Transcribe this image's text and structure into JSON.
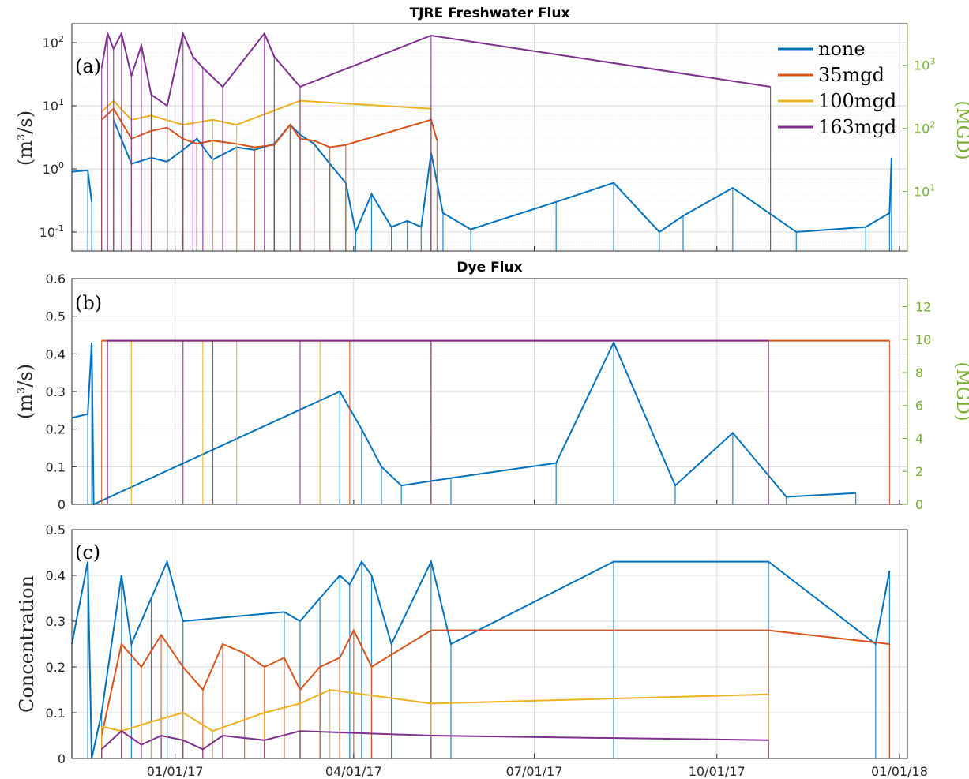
{
  "colors": {
    "none": "#0072bd",
    "35mgd": "#d95319",
    "100mgd": "#edb120",
    "163mgd": "#7e2f8e",
    "right_axis": "#77ac30",
    "grid": "#d9d9d9"
  },
  "chart_data": [
    {
      "panel": "a",
      "type": "line",
      "title": "TJRE Freshwater Flux",
      "panel_label": "(a)",
      "ylabel": "(m³/s)",
      "ylabel_base": "(m",
      "ylabel_sup": "3",
      "ylabel_tail": "/s)",
      "ylabel_right": "(MGD)",
      "yscale": "log",
      "ylim": [
        0.05,
        200
      ],
      "yticks": [
        {
          "base": "10",
          "exp": "-1"
        },
        {
          "base": "10",
          "exp": "0"
        },
        {
          "base": "10",
          "exp": "1"
        },
        {
          "base": "10",
          "exp": "2"
        }
      ],
      "ytick_values": [
        0.1,
        1,
        10,
        100
      ],
      "yticks_right": [
        {
          "base": "10",
          "exp": "1"
        },
        {
          "base": "10",
          "exp": "2"
        },
        {
          "base": "10",
          "exp": "3"
        }
      ],
      "yticks_right_values_mgd": [
        10,
        100,
        1000
      ],
      "grid": true,
      "legend": {
        "position": "top-right",
        "entries": [
          "none",
          "35mgd",
          "100mgd",
          "163mgd"
        ]
      },
      "series": [
        {
          "name": "none",
          "color_key": "none",
          "x": [
            "2016-11-10",
            "2016-11-18",
            "2016-11-20",
            "2016-11-25",
            "2016-12-01",
            "2016-12-10",
            "2016-12-20",
            "2016-12-28",
            "2017-01-05",
            "2017-01-12",
            "2017-01-20",
            "2017-02-01",
            "2017-02-10",
            "2017-02-20",
            "2017-02-28",
            "2017-03-05",
            "2017-03-12",
            "2017-03-20",
            "2017-03-28",
            "2017-04-02",
            "2017-04-10",
            "2017-04-20",
            "2017-04-28",
            "2017-05-05",
            "2017-05-10",
            "2017-05-16",
            "2017-05-30",
            "2017-07-12",
            "2017-08-10",
            "2017-09-02",
            "2017-09-14",
            "2017-10-09",
            "2017-11-10",
            "2017-12-15",
            "2017-12-27",
            "2017-12-28"
          ],
          "y": [
            0.9,
            0.95,
            0.3,
            null,
            6,
            1.2,
            1.5,
            1.3,
            2.0,
            3.0,
            1.4,
            2.2,
            2.0,
            2.5,
            5.0,
            3.5,
            2.5,
            1.2,
            0.6,
            0.1,
            0.4,
            0.12,
            0.15,
            0.12,
            1.8,
            0.2,
            0.11,
            0.3,
            0.6,
            0.1,
            0.18,
            0.5,
            0.1,
            0.12,
            0.2,
            1.5
          ]
        },
        {
          "name": "35mgd",
          "color_key": "35mgd",
          "x": [
            "2016-11-25",
            "2016-12-01",
            "2016-12-10",
            "2016-12-20",
            "2016-12-28",
            "2017-01-05",
            "2017-01-12",
            "2017-01-20",
            "2017-02-01",
            "2017-02-10",
            "2017-02-20",
            "2017-02-28",
            "2017-03-05",
            "2017-03-12",
            "2017-03-20",
            "2017-03-28",
            "2017-05-10",
            "2017-05-13"
          ],
          "y": [
            6,
            9,
            3,
            4,
            4.5,
            3,
            2.5,
            2.8,
            2.5,
            2.2,
            2.4,
            5,
            3,
            2.8,
            2.2,
            2.4,
            6,
            2.8
          ]
        },
        {
          "name": "100mgd",
          "color_key": "100mgd",
          "x": [
            "2016-11-25",
            "2016-12-01",
            "2016-12-10",
            "2016-12-20",
            "2017-01-05",
            "2017-01-20",
            "2017-02-01",
            "2017-03-05",
            "2017-05-10"
          ],
          "y": [
            8,
            12,
            6,
            7,
            5,
            6,
            5,
            12,
            9
          ]
        },
        {
          "name": "163mgd",
          "color_key": "163mgd",
          "x": [
            "2016-11-25",
            "2016-11-28",
            "2016-12-01",
            "2016-12-05",
            "2016-12-10",
            "2016-12-15",
            "2016-12-20",
            "2016-12-28",
            "2017-01-05",
            "2017-01-10",
            "2017-01-15",
            "2017-01-25",
            "2017-02-15",
            "2017-02-20",
            "2017-03-05",
            "2017-05-10",
            "2017-10-28"
          ],
          "y": [
            40,
            140,
            80,
            140,
            30,
            90,
            15,
            10,
            140,
            60,
            40,
            20,
            140,
            60,
            20,
            130,
            20
          ]
        }
      ]
    },
    {
      "panel": "b",
      "type": "line",
      "title": "Dye Flux",
      "panel_label": "(b)",
      "ylabel": "(m³/s)",
      "ylabel_base": "(m",
      "ylabel_sup": "3",
      "ylabel_tail": "/s)",
      "ylabel_right": "(MGD)",
      "ylim": [
        0,
        0.6
      ],
      "yticks": [
        "0",
        "0.1",
        "0.2",
        "0.3",
        "0.4",
        "0.5",
        "0.6"
      ],
      "ytick_values": [
        0,
        0.1,
        0.2,
        0.3,
        0.4,
        0.5,
        0.6
      ],
      "ylim_right": [
        0,
        13.7
      ],
      "yticks_right": [
        "0",
        "2",
        "4",
        "6",
        "8",
        "10",
        "12"
      ],
      "yticks_right_values": [
        0,
        2,
        4,
        6,
        8,
        10,
        12
      ],
      "grid": true,
      "series": [
        {
          "name": "none",
          "color_key": "none",
          "x": [
            "2016-11-10",
            "2016-11-18",
            "2016-11-20",
            "2016-11-21",
            "2017-03-25",
            "2017-04-05",
            "2017-04-15",
            "2017-04-25",
            "2017-05-20",
            "2017-07-12",
            "2017-08-10",
            "2017-09-10",
            "2017-10-09",
            "2017-11-05",
            "2017-12-10"
          ],
          "y": [
            0.23,
            0.24,
            0.43,
            0,
            0.3,
            0.2,
            0.1,
            0.05,
            0.07,
            0.11,
            0.43,
            0.05,
            0.19,
            0.02,
            0.03
          ]
        },
        {
          "name": "35mgd",
          "color_key": "35mgd",
          "x": [
            "2016-11-25",
            "2017-03-30",
            "2017-05-10",
            "2017-10-27",
            "2017-12-27"
          ],
          "y": [
            0.435,
            0.435,
            0.435,
            0.435,
            0.435
          ]
        },
        {
          "name": "100mgd",
          "color_key": "100mgd",
          "x": [
            "2016-12-10",
            "2017-01-15",
            "2017-02-01",
            "2017-03-15"
          ],
          "y": [
            0.435,
            0.435,
            0.435,
            0.435
          ]
        },
        {
          "name": "163mgd",
          "color_key": "163mgd",
          "x": [
            "2016-11-28",
            "2017-01-05",
            "2017-01-20",
            "2017-03-05",
            "2017-05-10",
            "2017-10-27"
          ],
          "y": [
            0.435,
            0.435,
            0.435,
            0.435,
            0.435,
            0.435
          ]
        }
      ]
    },
    {
      "panel": "c",
      "type": "line",
      "title": "",
      "panel_label": "(c)",
      "ylabel": "Concentration",
      "ylim": [
        0,
        0.5
      ],
      "yticks": [
        "0",
        "0.1",
        "0.2",
        "0.3",
        "0.4",
        "0.5"
      ],
      "ytick_values": [
        0,
        0.1,
        0.2,
        0.3,
        0.4,
        0.5
      ],
      "grid": true,
      "series": [
        {
          "name": "none",
          "color_key": "none",
          "x": [
            "2016-11-10",
            "2016-11-18",
            "2016-11-20",
            "2016-11-25",
            "2016-12-05",
            "2016-12-10",
            "2016-12-20",
            "2016-12-28",
            "2017-01-05",
            "2017-02-25",
            "2017-03-05",
            "2017-03-15",
            "2017-03-25",
            "2017-03-30",
            "2017-04-05",
            "2017-04-10",
            "2017-04-20",
            "2017-05-10",
            "2017-05-20",
            "2017-08-10",
            "2017-10-27",
            "2017-12-20",
            "2017-12-27"
          ],
          "y": [
            0.25,
            0.43,
            0,
            0.1,
            0.4,
            0.25,
            0.35,
            0.43,
            0.3,
            0.32,
            0.3,
            0.35,
            0.4,
            0.38,
            0.43,
            0.4,
            0.25,
            0.43,
            0.25,
            0.43,
            0.43,
            0.25,
            0.41
          ]
        },
        {
          "name": "35mgd",
          "color_key": "35mgd",
          "x": [
            "2016-11-25",
            "2016-12-05",
            "2016-12-15",
            "2016-12-25",
            "2017-01-05",
            "2017-01-15",
            "2017-01-25",
            "2017-02-05",
            "2017-02-15",
            "2017-02-25",
            "2017-03-05",
            "2017-03-15",
            "2017-03-25",
            "2017-04-01",
            "2017-04-10",
            "2017-05-10",
            "2017-10-27",
            "2017-12-27"
          ],
          "y": [
            0.05,
            0.25,
            0.2,
            0.27,
            0.2,
            0.15,
            0.25,
            0.23,
            0.2,
            0.22,
            0.15,
            0.2,
            0.22,
            0.28,
            0.2,
            0.28,
            0.28,
            0.25
          ]
        },
        {
          "name": "100mgd",
          "color_key": "100mgd",
          "x": [
            "2016-11-25",
            "2016-12-05",
            "2016-12-20",
            "2017-01-05",
            "2017-01-20",
            "2017-02-15",
            "2017-03-05",
            "2017-03-20",
            "2017-05-10",
            "2017-10-27"
          ],
          "y": [
            0.07,
            0.06,
            0.08,
            0.1,
            0.06,
            0.1,
            0.12,
            0.15,
            0.12,
            0.14
          ]
        },
        {
          "name": "163mgd",
          "color_key": "163mgd",
          "x": [
            "2016-11-25",
            "2016-12-05",
            "2016-12-15",
            "2016-12-25",
            "2017-01-05",
            "2017-01-15",
            "2017-01-25",
            "2017-02-15",
            "2017-03-05",
            "2017-05-10",
            "2017-10-27"
          ],
          "y": [
            0.02,
            0.06,
            0.03,
            0.05,
            0.04,
            0.02,
            0.05,
            0.04,
            0.06,
            0.05,
            0.04
          ]
        }
      ]
    }
  ],
  "x_axis": {
    "start": "2016-11-10",
    "end": "2018-01-05",
    "tick_dates": [
      "2017-01-01",
      "2017-04-01",
      "2017-07-01",
      "2017-10-01",
      "2018-01-01"
    ],
    "tick_labels": [
      "01/01/17",
      "04/01/17",
      "07/01/17",
      "10/01/17",
      "01/01/18"
    ]
  }
}
